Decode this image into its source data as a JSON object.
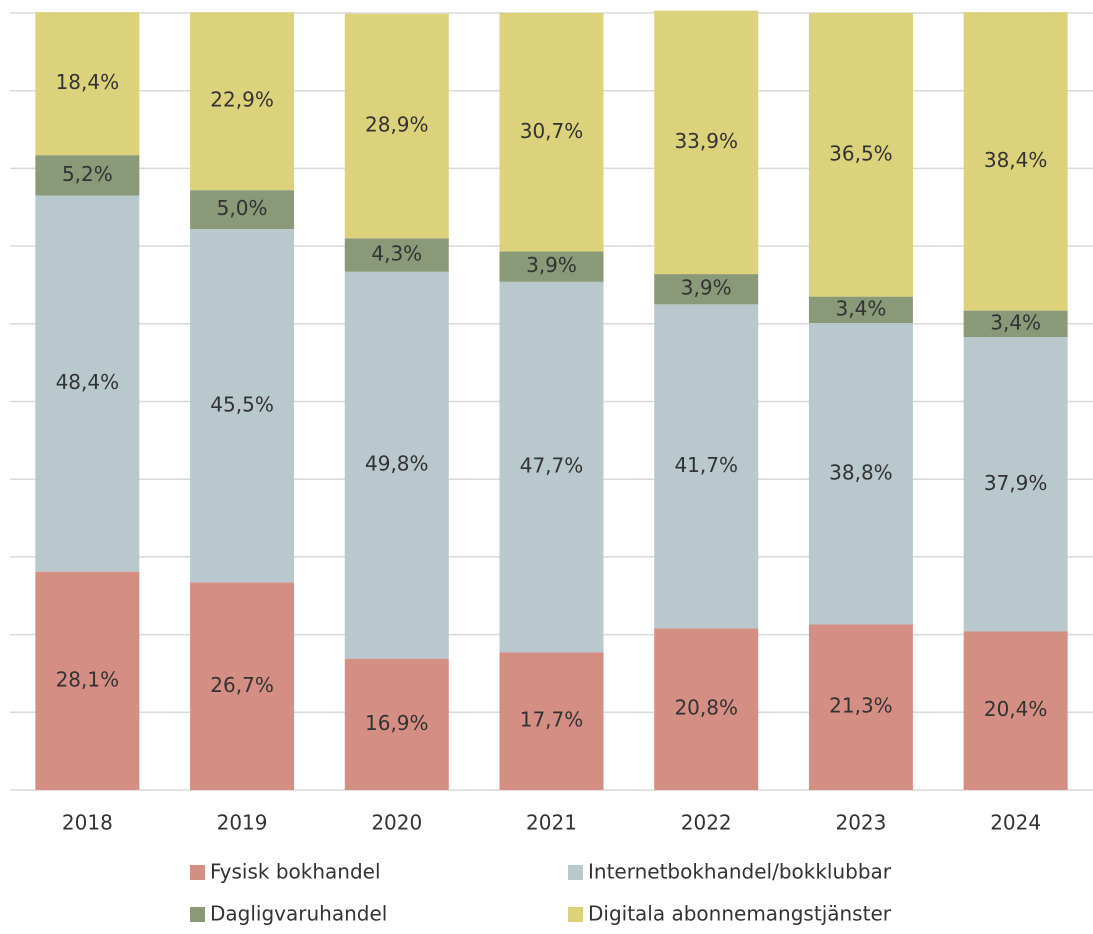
{
  "chart_data": {
    "type": "stacked_bar",
    "categories": [
      "2018",
      "2019",
      "2020",
      "2021",
      "2022",
      "2023",
      "2024"
    ],
    "series": [
      {
        "name": "Fysisk bokhandel",
        "color": "#d58e84",
        "values": [
          28.1,
          26.7,
          16.9,
          17.7,
          20.8,
          21.3,
          20.4
        ],
        "value_labels": [
          "28,1%",
          "26,7%",
          "16,9%",
          "17,7%",
          "20,8%",
          "21,3%",
          "20,4%"
        ]
      },
      {
        "name": "Internetbokhandel/bokklubbar",
        "color": "#b8c8cc",
        "values": [
          48.4,
          45.5,
          49.8,
          47.7,
          41.7,
          38.8,
          37.9
        ],
        "value_labels": [
          "48,4%",
          "45,5%",
          "49,8%",
          "47,7%",
          "41,7%",
          "38,8%",
          "37,9%"
        ]
      },
      {
        "name": "Dagligvaruhandel",
        "color": "#8a9a78",
        "values": [
          5.2,
          5.0,
          4.3,
          3.9,
          3.9,
          3.4,
          3.4
        ],
        "value_labels": [
          "5,2%",
          "5,0%",
          "4,3%",
          "3,9%",
          "3,9%",
          "3,4%",
          "3,4%"
        ]
      },
      {
        "name": "Digitala abonnemangstjänster",
        "color": "#dcd27b",
        "values": [
          18.4,
          22.9,
          28.9,
          30.7,
          33.9,
          36.5,
          38.4
        ],
        "value_labels": [
          "18,4%",
          "22,9%",
          "28,9%",
          "30,7%",
          "33,9%",
          "36,5%",
          "38,4%"
        ]
      }
    ],
    "ylim": [
      0,
      100
    ],
    "yticks": [
      0,
      10,
      20,
      30,
      40,
      50,
      60,
      70,
      80,
      90,
      100
    ],
    "grid": true
  }
}
